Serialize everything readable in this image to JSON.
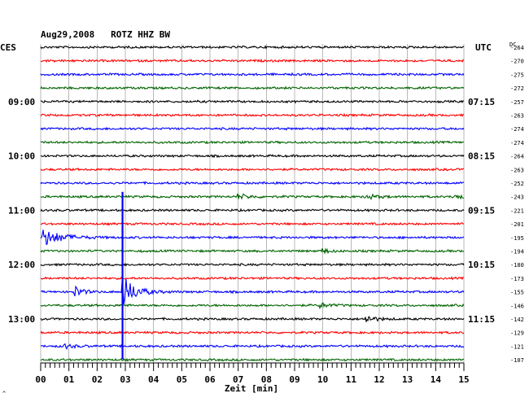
{
  "chart_data": {
    "type": "line",
    "title": "Aug29,2008   ROTZ HHZ BW",
    "xlabel": "Zeit [min]",
    "x_ticks": [
      "00",
      "01",
      "02",
      "03",
      "04",
      "05",
      "06",
      "07",
      "08",
      "09",
      "10",
      "11",
      "12",
      "13",
      "14",
      "15"
    ],
    "xlim": [
      0,
      15
    ],
    "left_header": "CES",
    "right_header": "UTC",
    "dc_header": "DC",
    "left_time_labels": [
      {
        "trace": 4,
        "label": "09:00"
      },
      {
        "trace": 8,
        "label": "10:00"
      },
      {
        "trace": 12,
        "label": "11:00"
      },
      {
        "trace": 16,
        "label": "12:00"
      },
      {
        "trace": 20,
        "label": "13:00"
      }
    ],
    "right_time_labels": [
      {
        "trace": 4,
        "label": "07:15"
      },
      {
        "trace": 8,
        "label": "08:15"
      },
      {
        "trace": 12,
        "label": "09:15"
      },
      {
        "trace": 16,
        "label": "10:15"
      },
      {
        "trace": 20,
        "label": "11:15"
      }
    ],
    "trace_colors": [
      "#000000",
      "#ff0000",
      "#0000ff",
      "#006400"
    ],
    "traces": [
      {
        "dc": "-264"
      },
      {
        "dc": "-270"
      },
      {
        "dc": "-275"
      },
      {
        "dc": "-272"
      },
      {
        "dc": "-257"
      },
      {
        "dc": "-263"
      },
      {
        "dc": "-274"
      },
      {
        "dc": "-274"
      },
      {
        "dc": "-264"
      },
      {
        "dc": "-263"
      },
      {
        "dc": "-252"
      },
      {
        "dc": "-243"
      },
      {
        "dc": "-221"
      },
      {
        "dc": "-201"
      },
      {
        "dc": "-195"
      },
      {
        "dc": "-194"
      },
      {
        "dc": "-180"
      },
      {
        "dc": "-173"
      },
      {
        "dc": "-155"
      },
      {
        "dc": "-146"
      },
      {
        "dc": "-142"
      },
      {
        "dc": "-129"
      },
      {
        "dc": "-121"
      },
      {
        "dc": "-107"
      }
    ],
    "events": [
      {
        "trace": 14,
        "minute": 0.05,
        "amplitude": 11,
        "decay": 0.6
      },
      {
        "trace": 18,
        "minute": 1.2,
        "amplitude": 7,
        "decay": 0.25
      },
      {
        "trace": 18,
        "minute": 2.9,
        "amplitude": 20,
        "decay": 0.4
      },
      {
        "trace": 11,
        "minute": 7.0,
        "amplitude": 3,
        "decay": 0.4
      },
      {
        "trace": 11,
        "minute": 11.5,
        "amplitude": 3,
        "decay": 0.4
      },
      {
        "trace": 11,
        "minute": 14.6,
        "amplitude": 3,
        "decay": 0.3
      },
      {
        "trace": 20,
        "minute": 11.5,
        "amplitude": 5,
        "decay": 0.3
      },
      {
        "trace": 19,
        "minute": 9.9,
        "amplitude": 3,
        "decay": 0.3
      },
      {
        "trace": 22,
        "minute": 0.8,
        "amplitude": 3,
        "decay": 0.3
      },
      {
        "trace": 15,
        "minute": 10.0,
        "amplitude": 3,
        "decay": 0.2
      }
    ],
    "spike": {
      "minute": 2.9,
      "from_trace": 11,
      "to_trace": 22
    }
  },
  "footer_mark": "^"
}
